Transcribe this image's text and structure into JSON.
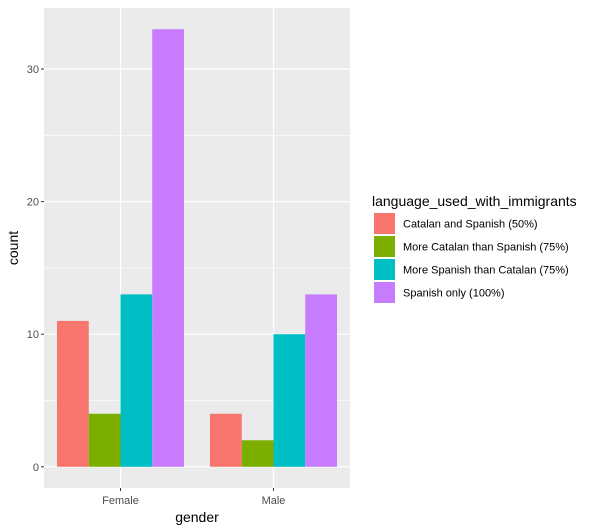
{
  "chart_data": {
    "type": "bar",
    "categories": [
      "Female",
      "Male"
    ],
    "xlabel": "gender",
    "ylabel": "count",
    "ylim": [
      -1.6,
      34.6
    ],
    "yticks": [
      0,
      10,
      20,
      30
    ],
    "legend_title": "language_used_with_immigrants",
    "legend_position": "right",
    "grid": true,
    "panel_background": "#ebebeb",
    "grid_color": "#ffffff",
    "series": [
      {
        "name": "Catalan and Spanish (50%)",
        "color": "#F8766D",
        "values": [
          11,
          4
        ]
      },
      {
        "name": "More Catalan than Spanish (75%)",
        "color": "#7CAE00",
        "values": [
          4,
          2
        ]
      },
      {
        "name": "More Spanish than Catalan (75%)",
        "color": "#00BFC4",
        "values": [
          13,
          10
        ]
      },
      {
        "name": "Spanish only (100%)",
        "color": "#C77CFF",
        "values": [
          33,
          13
        ]
      }
    ]
  }
}
